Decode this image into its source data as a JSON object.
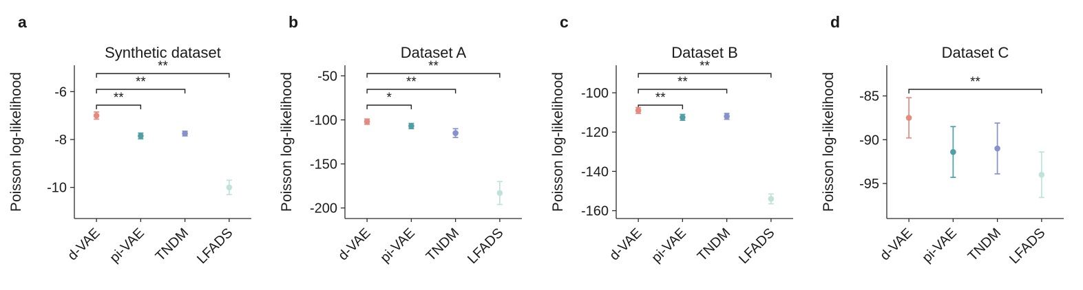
{
  "series_colors": {
    "d-VAE": "#e58a7e",
    "pi-VAE": "#4f9fa5",
    "TNDM": "#8791cb",
    "LFADS": "#bfe3da"
  },
  "axis_color": "#2b2b2b",
  "text_color": "#1a1a1a",
  "bracket_color": "#222222",
  "chart_data": [
    {
      "type": "scatter",
      "panel_label": "a",
      "title": "Synthetic dataset",
      "ylabel": "Poisson log-likelihood",
      "categories": [
        "d-VAE",
        "pi-VAE",
        "TNDM",
        "LFADS"
      ],
      "means": [
        -7.0,
        -7.85,
        -7.75,
        -10.0
      ],
      "errors": [
        0.15,
        0.12,
        0.1,
        0.3
      ],
      "yticks": [
        -6,
        -8,
        -10
      ],
      "ylim": [
        -11.3,
        -4.9
      ],
      "significance": [
        {
          "from": 0,
          "to": 1,
          "label": "**",
          "level": 0
        },
        {
          "from": 0,
          "to": 2,
          "label": "**",
          "level": 1
        },
        {
          "from": 0,
          "to": 3,
          "label": "**",
          "level": 2
        }
      ]
    },
    {
      "type": "scatter",
      "panel_label": "b",
      "title": "Dataset A",
      "ylabel": "Poisson log-likelihood",
      "categories": [
        "d-VAE",
        "pi-VAE",
        "TNDM",
        "LFADS"
      ],
      "means": [
        -102,
        -107,
        -115,
        -183
      ],
      "errors": [
        3,
        3,
        5,
        13
      ],
      "yticks": [
        -50,
        -100,
        -150,
        -200
      ],
      "ylim": [
        -212,
        -38
      ],
      "significance": [
        {
          "from": 0,
          "to": 1,
          "label": "*",
          "level": 0
        },
        {
          "from": 0,
          "to": 2,
          "label": "**",
          "level": 1
        },
        {
          "from": 0,
          "to": 3,
          "label": "**",
          "level": 2
        }
      ]
    },
    {
      "type": "scatter",
      "panel_label": "c",
      "title": "Dataset B",
      "ylabel": "Poisson log-likelihood",
      "categories": [
        "d-VAE",
        "pi-VAE",
        "TNDM",
        "LFADS"
      ],
      "means": [
        -109,
        -112.5,
        -112,
        -154
      ],
      "errors": [
        1.5,
        1.5,
        1.5,
        2.5
      ],
      "yticks": [
        -100,
        -120,
        -140,
        -160
      ],
      "ylim": [
        -164,
        -86
      ],
      "significance": [
        {
          "from": 0,
          "to": 1,
          "label": "**",
          "level": 0
        },
        {
          "from": 0,
          "to": 2,
          "label": "**",
          "level": 1
        },
        {
          "from": 0,
          "to": 3,
          "label": "**",
          "level": 2
        }
      ]
    },
    {
      "type": "scatter",
      "panel_label": "d",
      "title": "Dataset C",
      "ylabel": "Poisson log-likelihood",
      "categories": [
        "d-VAE",
        "pi-VAE",
        "TNDM",
        "LFADS"
      ],
      "means": [
        -87.5,
        -91.4,
        -91.0,
        -94.0
      ],
      "errors": [
        2.3,
        2.9,
        2.9,
        2.6
      ],
      "yticks": [
        -85,
        -90,
        -95
      ],
      "ylim": [
        -99,
        -81.5
      ],
      "significance": [
        {
          "from": 0,
          "to": 3,
          "label": "**",
          "level": 1
        }
      ]
    }
  ]
}
